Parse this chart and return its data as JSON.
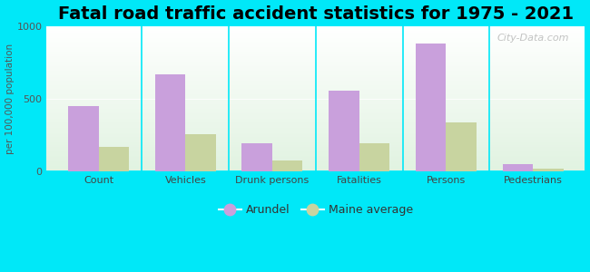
{
  "title": "Fatal road traffic accident statistics for 1975 - 2021",
  "ylabel": "per 100,000 population",
  "categories": [
    "Count",
    "Vehicles",
    "Drunk persons",
    "Fatalities",
    "Persons",
    "Pedestrians"
  ],
  "arundel": [
    450,
    665,
    195,
    555,
    878,
    50
  ],
  "maine_avg": [
    170,
    255,
    75,
    195,
    335,
    20
  ],
  "arundel_color": "#c9a0dc",
  "maine_color": "#c8d4a0",
  "ylim": [
    0,
    1000
  ],
  "yticks": [
    0,
    500,
    1000
  ],
  "background_color": "#00e8f8",
  "title_fontsize": 14,
  "legend_labels": [
    "Arundel",
    "Maine average"
  ],
  "bar_width": 0.35,
  "watermark": "City-Data.com"
}
